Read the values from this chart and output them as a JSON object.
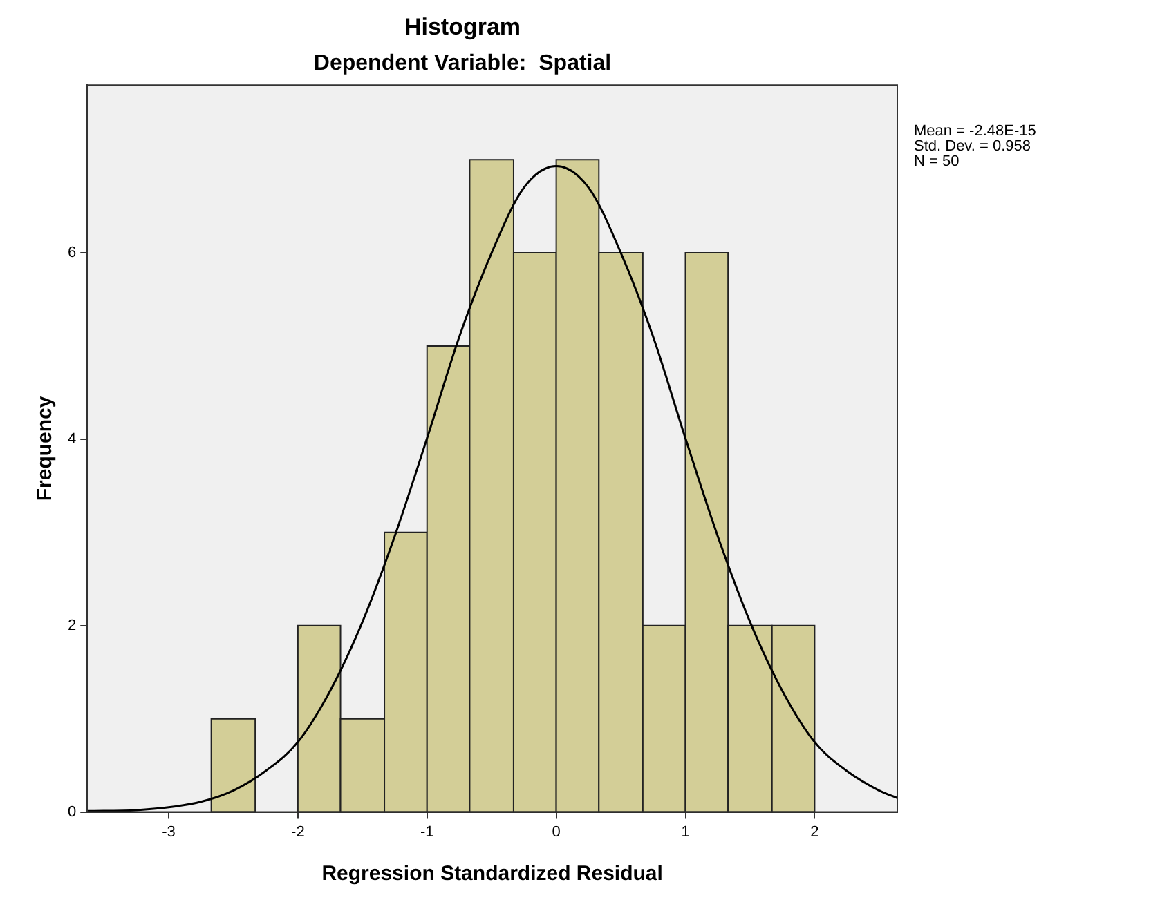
{
  "chart_data": {
    "type": "histogram",
    "title": "Histogram",
    "subtitle": "Dependent Variable:  Spatial",
    "xlabel": "Regression Standardized Residual",
    "ylabel": "Frequency",
    "bins": [
      -2.67,
      -2.33,
      -2,
      -1.67,
      -1.33,
      -1,
      -0.67,
      -0.33,
      0,
      0.33,
      0.67,
      1,
      1.33,
      1.67,
      2
    ],
    "values": [
      1,
      0,
      2,
      1,
      3,
      5,
      7,
      6,
      7,
      6,
      2,
      6,
      2,
      2
    ],
    "color": "#d3ce97",
    "series": [
      {
        "type": "line",
        "color": "#000000",
        "marker": "none",
        "x": [
          -3.63,
          -3.25,
          -3,
          -2.75,
          -2.5,
          -2.25,
          -2,
          -1.75,
          -1.5,
          -1.25,
          -1,
          -0.75,
          -0.5,
          -0.25,
          0,
          0.25,
          0.5,
          0.75,
          1,
          1.25,
          1.5,
          1.75,
          2,
          2.25,
          2.5,
          2.64
        ],
        "values": [
          0.01,
          0.02,
          0.05,
          0.11,
          0.23,
          0.44,
          0.75,
          1.3,
          2.04,
          2.96,
          4.01,
          5.1,
          6,
          6.7,
          6.93,
          6.7,
          6,
          5.1,
          4.01,
          2.96,
          2.04,
          1.3,
          0.75,
          0.44,
          0.23,
          0.15
        ]
      }
    ],
    "xlim": [
      -3.63,
      2.64
    ],
    "xticks": [
      -3,
      -2,
      -1,
      0,
      1,
      2
    ],
    "ylim": [
      0,
      7.8
    ],
    "yticks": [
      0,
      2,
      4,
      6
    ],
    "annotations": [
      "Mean = -2.48E-15",
      "Std. Dev. = 0.958",
      "N = 50"
    ]
  }
}
